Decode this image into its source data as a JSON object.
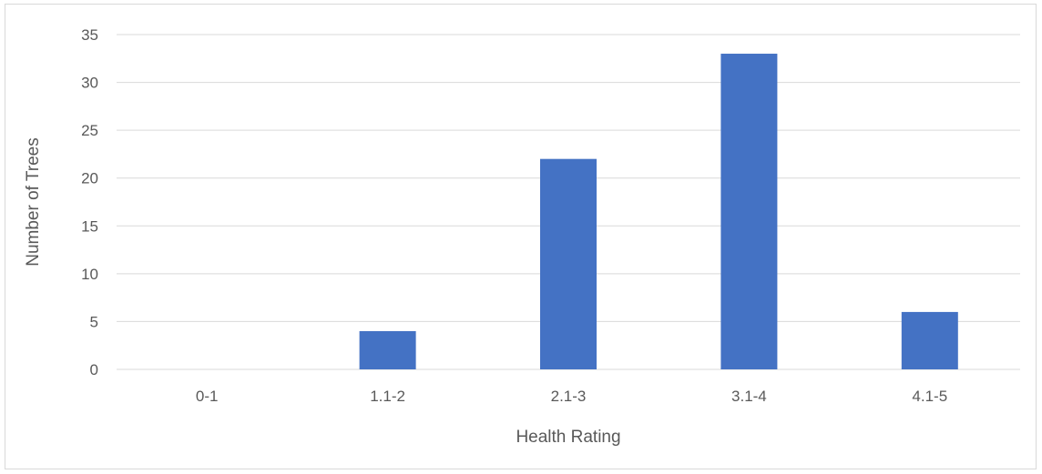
{
  "chart_data": {
    "type": "bar",
    "title": "",
    "xlabel": "Health Rating",
    "ylabel": "Number of Trees",
    "categories": [
      "0-1",
      "1.1-2",
      "2.1-3",
      "3.1-4",
      "4.1-5"
    ],
    "values": [
      0,
      4,
      22,
      33,
      6
    ],
    "ylim": [
      0,
      35
    ],
    "yticks": [
      0,
      5,
      10,
      15,
      20,
      25,
      30,
      35
    ],
    "grid": true,
    "legend": "none",
    "bar_color": "#4472c4"
  }
}
